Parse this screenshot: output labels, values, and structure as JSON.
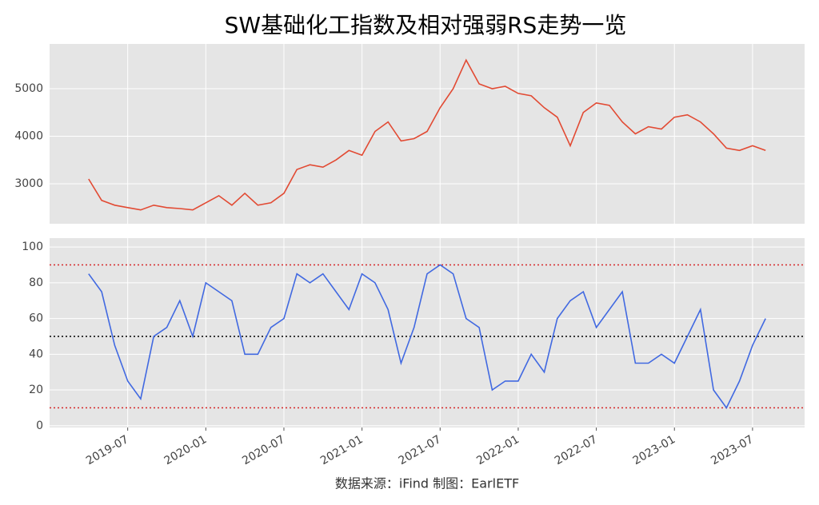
{
  "title": "SW基础化工指数及相对强弱RS走势一览",
  "source": "数据来源：iFind 制图：EarlETF",
  "chart_data": [
    {
      "type": "line",
      "color": "#e24a33",
      "x": [
        "2019-04",
        "2019-05",
        "2019-06",
        "2019-07",
        "2019-08",
        "2019-09",
        "2019-10",
        "2019-11",
        "2019-12",
        "2020-01",
        "2020-02",
        "2020-03",
        "2020-04",
        "2020-05",
        "2020-06",
        "2020-07",
        "2020-08",
        "2020-09",
        "2020-10",
        "2020-11",
        "2020-12",
        "2021-01",
        "2021-02",
        "2021-03",
        "2021-04",
        "2021-05",
        "2021-06",
        "2021-07",
        "2021-08",
        "2021-09",
        "2021-10",
        "2021-11",
        "2021-12",
        "2022-01",
        "2022-02",
        "2022-03",
        "2022-04",
        "2022-05",
        "2022-06",
        "2022-07",
        "2022-08",
        "2022-09",
        "2022-10",
        "2022-11",
        "2022-12",
        "2023-01",
        "2023-02",
        "2023-03",
        "2023-04",
        "2023-05",
        "2023-06",
        "2023-07",
        "2023-08"
      ],
      "values": [
        3100,
        2650,
        2550,
        2500,
        2450,
        2550,
        2500,
        2480,
        2450,
        2600,
        2750,
        2550,
        2800,
        2550,
        2600,
        2800,
        3300,
        3400,
        3350,
        3500,
        3700,
        3600,
        4100,
        4300,
        3900,
        3950,
        4100,
        4600,
        5000,
        5600,
        5100,
        5000,
        5050,
        4900,
        4850,
        4600,
        4400,
        3800,
        4500,
        4700,
        4650,
        4300,
        4050,
        4200,
        4150,
        4400,
        4450,
        4300,
        4050,
        3750,
        3700,
        3800,
        3700
      ],
      "xlim": [
        "2019-01",
        "2023-11"
      ],
      "ylim": [
        2160,
        5940
      ],
      "yticks": [
        3000,
        4000,
        5000
      ],
      "grid": true
    },
    {
      "type": "line",
      "color": "#4169e1",
      "x": [
        "2019-04",
        "2019-05",
        "2019-06",
        "2019-07",
        "2019-08",
        "2019-09",
        "2019-10",
        "2019-11",
        "2019-12",
        "2020-01",
        "2020-02",
        "2020-03",
        "2020-04",
        "2020-05",
        "2020-06",
        "2020-07",
        "2020-08",
        "2020-09",
        "2020-10",
        "2020-11",
        "2020-12",
        "2021-01",
        "2021-02",
        "2021-03",
        "2021-04",
        "2021-05",
        "2021-06",
        "2021-07",
        "2021-08",
        "2021-09",
        "2021-10",
        "2021-11",
        "2021-12",
        "2022-01",
        "2022-02",
        "2022-03",
        "2022-04",
        "2022-05",
        "2022-06",
        "2022-07",
        "2022-08",
        "2022-09",
        "2022-10",
        "2022-11",
        "2022-12",
        "2023-01",
        "2023-02",
        "2023-03",
        "2023-04",
        "2023-05",
        "2023-06",
        "2023-07",
        "2023-08"
      ],
      "values": [
        85,
        75,
        45,
        25,
        15,
        50,
        55,
        70,
        50,
        80,
        75,
        70,
        40,
        40,
        55,
        60,
        85,
        80,
        85,
        75,
        65,
        85,
        80,
        65,
        35,
        55,
        85,
        90,
        85,
        60,
        55,
        20,
        25,
        25,
        40,
        30,
        60,
        70,
        75,
        55,
        65,
        75,
        35,
        35,
        40,
        35,
        50,
        65,
        20,
        10,
        25,
        45,
        60
      ],
      "xlim": [
        "2019-01",
        "2023-11"
      ],
      "xticks": [
        "2019-07",
        "2020-01",
        "2020-07",
        "2021-01",
        "2021-07",
        "2022-01",
        "2022-07",
        "2023-01",
        "2023-07"
      ],
      "ylim": [
        -1,
        105
      ],
      "yticks": [
        0,
        20,
        40,
        60,
        80,
        100
      ],
      "grid": true,
      "hlines": [
        {
          "value": 90,
          "color": "#d62728"
        },
        {
          "value": 50,
          "color": "#000000"
        },
        {
          "value": 10,
          "color": "#d62728"
        }
      ]
    }
  ]
}
